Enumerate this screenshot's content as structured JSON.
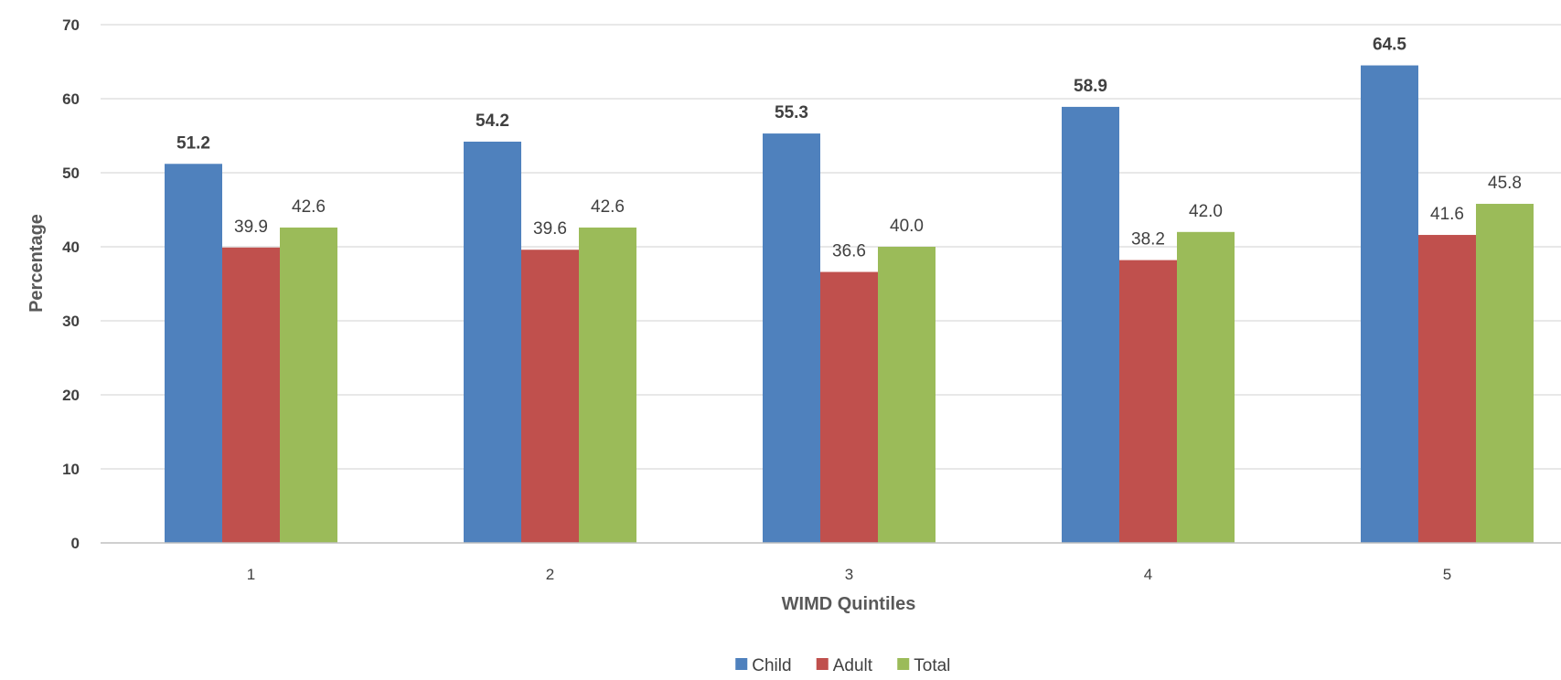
{
  "chart_data": {
    "type": "bar",
    "title": "",
    "xlabel": "WIMD Quintiles",
    "ylabel": "Percentage",
    "ylim": [
      0,
      70
    ],
    "yticks": [
      "0",
      "10",
      "20",
      "30",
      "40",
      "50",
      "60",
      "70"
    ],
    "categories": [
      "1",
      "2",
      "3",
      "4",
      "5"
    ],
    "series": [
      {
        "name": "Child",
        "color": "#4f81bd",
        "values": [
          51.2,
          54.2,
          55.3,
          58.9,
          64.5
        ],
        "labels": [
          "51.2",
          "54.2",
          "55.3",
          "58.9",
          "64.5"
        ],
        "label_bold": true
      },
      {
        "name": "Adult",
        "color": "#c0504d",
        "values": [
          39.9,
          39.6,
          36.6,
          38.2,
          41.6
        ],
        "labels": [
          "39.9",
          "39.6",
          "36.6",
          "38.2",
          "41.6"
        ],
        "label_bold": false
      },
      {
        "name": "Total",
        "color": "#9bbb59",
        "values": [
          42.6,
          42.6,
          40.0,
          42.0,
          45.8
        ],
        "labels": [
          "42.6",
          "42.6",
          "40.0",
          "42.0",
          "45.8"
        ],
        "label_bold": false
      }
    ],
    "grid": true,
    "legend_position": "bottom-center",
    "gridline_color": "#d9d9d9",
    "axis_line_color": "#bfbfbf"
  }
}
